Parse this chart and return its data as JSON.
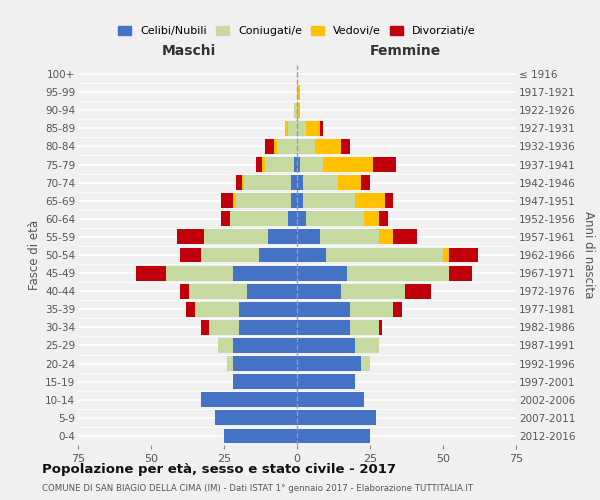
{
  "age_groups": [
    "0-4",
    "5-9",
    "10-14",
    "15-19",
    "20-24",
    "25-29",
    "30-34",
    "35-39",
    "40-44",
    "45-49",
    "50-54",
    "55-59",
    "60-64",
    "65-69",
    "70-74",
    "75-79",
    "80-84",
    "85-89",
    "90-94",
    "95-99",
    "100+"
  ],
  "birth_years": [
    "2012-2016",
    "2007-2011",
    "2002-2006",
    "1997-2001",
    "1992-1996",
    "1987-1991",
    "1982-1986",
    "1977-1981",
    "1972-1976",
    "1967-1971",
    "1962-1966",
    "1957-1961",
    "1952-1956",
    "1947-1951",
    "1942-1946",
    "1937-1941",
    "1932-1936",
    "1927-1931",
    "1922-1926",
    "1917-1921",
    "≤ 1916"
  ],
  "male": {
    "celibi": [
      25,
      28,
      33,
      22,
      22,
      22,
      20,
      20,
      17,
      22,
      13,
      10,
      3,
      2,
      2,
      1,
      0,
      0,
      0,
      0,
      0
    ],
    "coniugati": [
      0,
      0,
      0,
      0,
      2,
      5,
      10,
      15,
      20,
      23,
      20,
      22,
      20,
      19,
      16,
      10,
      7,
      3,
      1,
      0,
      0
    ],
    "vedovi": [
      0,
      0,
      0,
      0,
      0,
      0,
      0,
      0,
      0,
      0,
      0,
      0,
      0,
      1,
      1,
      1,
      1,
      1,
      0,
      0,
      0
    ],
    "divorziati": [
      0,
      0,
      0,
      0,
      0,
      0,
      3,
      3,
      3,
      10,
      7,
      9,
      3,
      4,
      2,
      2,
      3,
      0,
      0,
      0,
      0
    ]
  },
  "female": {
    "nubili": [
      25,
      27,
      23,
      20,
      22,
      20,
      18,
      18,
      15,
      17,
      10,
      8,
      3,
      2,
      2,
      1,
      0,
      0,
      0,
      0,
      0
    ],
    "coniugate": [
      0,
      0,
      0,
      0,
      3,
      8,
      10,
      15,
      22,
      35,
      40,
      20,
      20,
      18,
      12,
      8,
      6,
      3,
      0,
      0,
      0
    ],
    "vedove": [
      0,
      0,
      0,
      0,
      0,
      0,
      0,
      0,
      0,
      0,
      2,
      5,
      5,
      10,
      8,
      17,
      9,
      5,
      1,
      1,
      0
    ],
    "divorziate": [
      0,
      0,
      0,
      0,
      0,
      0,
      1,
      3,
      9,
      8,
      10,
      8,
      3,
      3,
      3,
      8,
      3,
      1,
      0,
      0,
      0
    ]
  },
  "colors": {
    "celibi": "#4472c4",
    "coniugati": "#c5d9a0",
    "vedovi": "#ffc000",
    "divorziati": "#c0000b"
  },
  "title": "Popolazione per età, sesso e stato civile - 2017",
  "subtitle": "COMUNE DI SAN BIAGIO DELLA CIMA (IM) - Dati ISTAT 1° gennaio 2017 - Elaborazione TUTTITALIA.IT",
  "xlabel_left": "Maschi",
  "xlabel_right": "Femmine",
  "ylabel_left": "Fasce di età",
  "ylabel_right": "Anni di nascita",
  "xlim": 75,
  "bg_color": "#f0f0f0",
  "grid_color": "#ffffff",
  "legend_labels": [
    "Celibi/Nubili",
    "Coniugati/e",
    "Vedovi/e",
    "Divorziati/e"
  ]
}
